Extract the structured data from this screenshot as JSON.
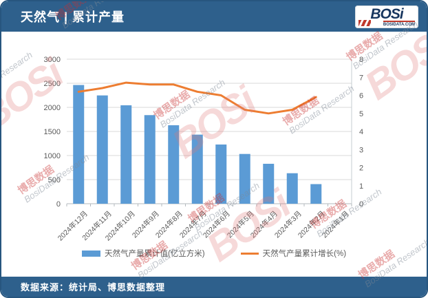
{
  "header": {
    "title": "天然气 | 累计产量",
    "logo": {
      "text": "BOSi",
      "sub": "BOSIDATA.COM"
    }
  },
  "footer": {
    "source": "数据来源：统计局、博思数据整理"
  },
  "watermark": {
    "logo": "BOSi",
    "cn": "博思数据",
    "en": "BosiData Research"
  },
  "legend": [
    {
      "label": "天然气产量累计值(亿立方米)",
      "color": "#5B9BD5",
      "type": "bar"
    },
    {
      "label": "天然气产量累计增长(%)",
      "color": "#ED7D31",
      "type": "line"
    }
  ],
  "chart_data": {
    "type": "bar",
    "title": "天然气 | 累计产量",
    "categories": [
      "2024年12月",
      "2024年11月",
      "2024年10月",
      "2024年9月",
      "2024年8月",
      "2024年7月",
      "2024年6月",
      "2024年5月",
      "2024年4月",
      "2024年3月",
      "2024年2月",
      "2024年1月"
    ],
    "series": [
      {
        "name": "天然气产量累计值(亿立方米)",
        "type": "bar",
        "axis": "left",
        "color": "#5B9BD5",
        "values": [
          2464,
          2248,
          2043,
          1839,
          1629,
          1434,
          1229,
          1033,
          829,
          633,
          407,
          null
        ]
      },
      {
        "name": "天然气产量累计增长(%)",
        "type": "line",
        "axis": "right",
        "color": "#ED7D31",
        "values": [
          6.2,
          6.4,
          6.7,
          6.6,
          6.6,
          6.2,
          6.0,
          5.2,
          5.0,
          5.2,
          5.9,
          null
        ]
      }
    ],
    "left_axis": {
      "min": 0,
      "max": 3000,
      "step": 500,
      "ticks": [
        0,
        500,
        1000,
        1500,
        2000,
        2500,
        3000
      ]
    },
    "right_axis": {
      "min": 0,
      "max": 8,
      "step": 1,
      "ticks": [
        0,
        1,
        2,
        3,
        4,
        5,
        6,
        7,
        8
      ]
    },
    "grid": true,
    "legend_position": "bottom"
  }
}
